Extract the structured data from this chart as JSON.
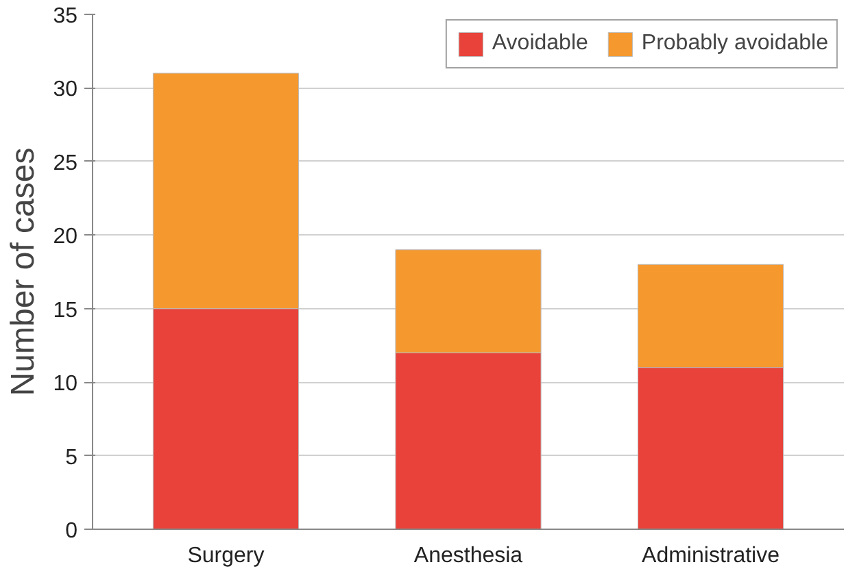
{
  "chart_data": {
    "type": "bar",
    "ylabel": "Number of cases",
    "categories": [
      "Surgery",
      "Anesthesia",
      "Administrative"
    ],
    "stacked": true,
    "series": [
      {
        "name": "Avoidable",
        "color": "#e8423a",
        "values": [
          15,
          12,
          11
        ]
      },
      {
        "name": "Probably avoidable",
        "color": "#f5992f",
        "values": [
          16,
          7,
          7
        ]
      }
    ],
    "ylim": [
      0,
      35
    ],
    "yticks": [
      0,
      5,
      10,
      15,
      20,
      25,
      30,
      35
    ],
    "grid": "y",
    "legend": "top right"
  }
}
